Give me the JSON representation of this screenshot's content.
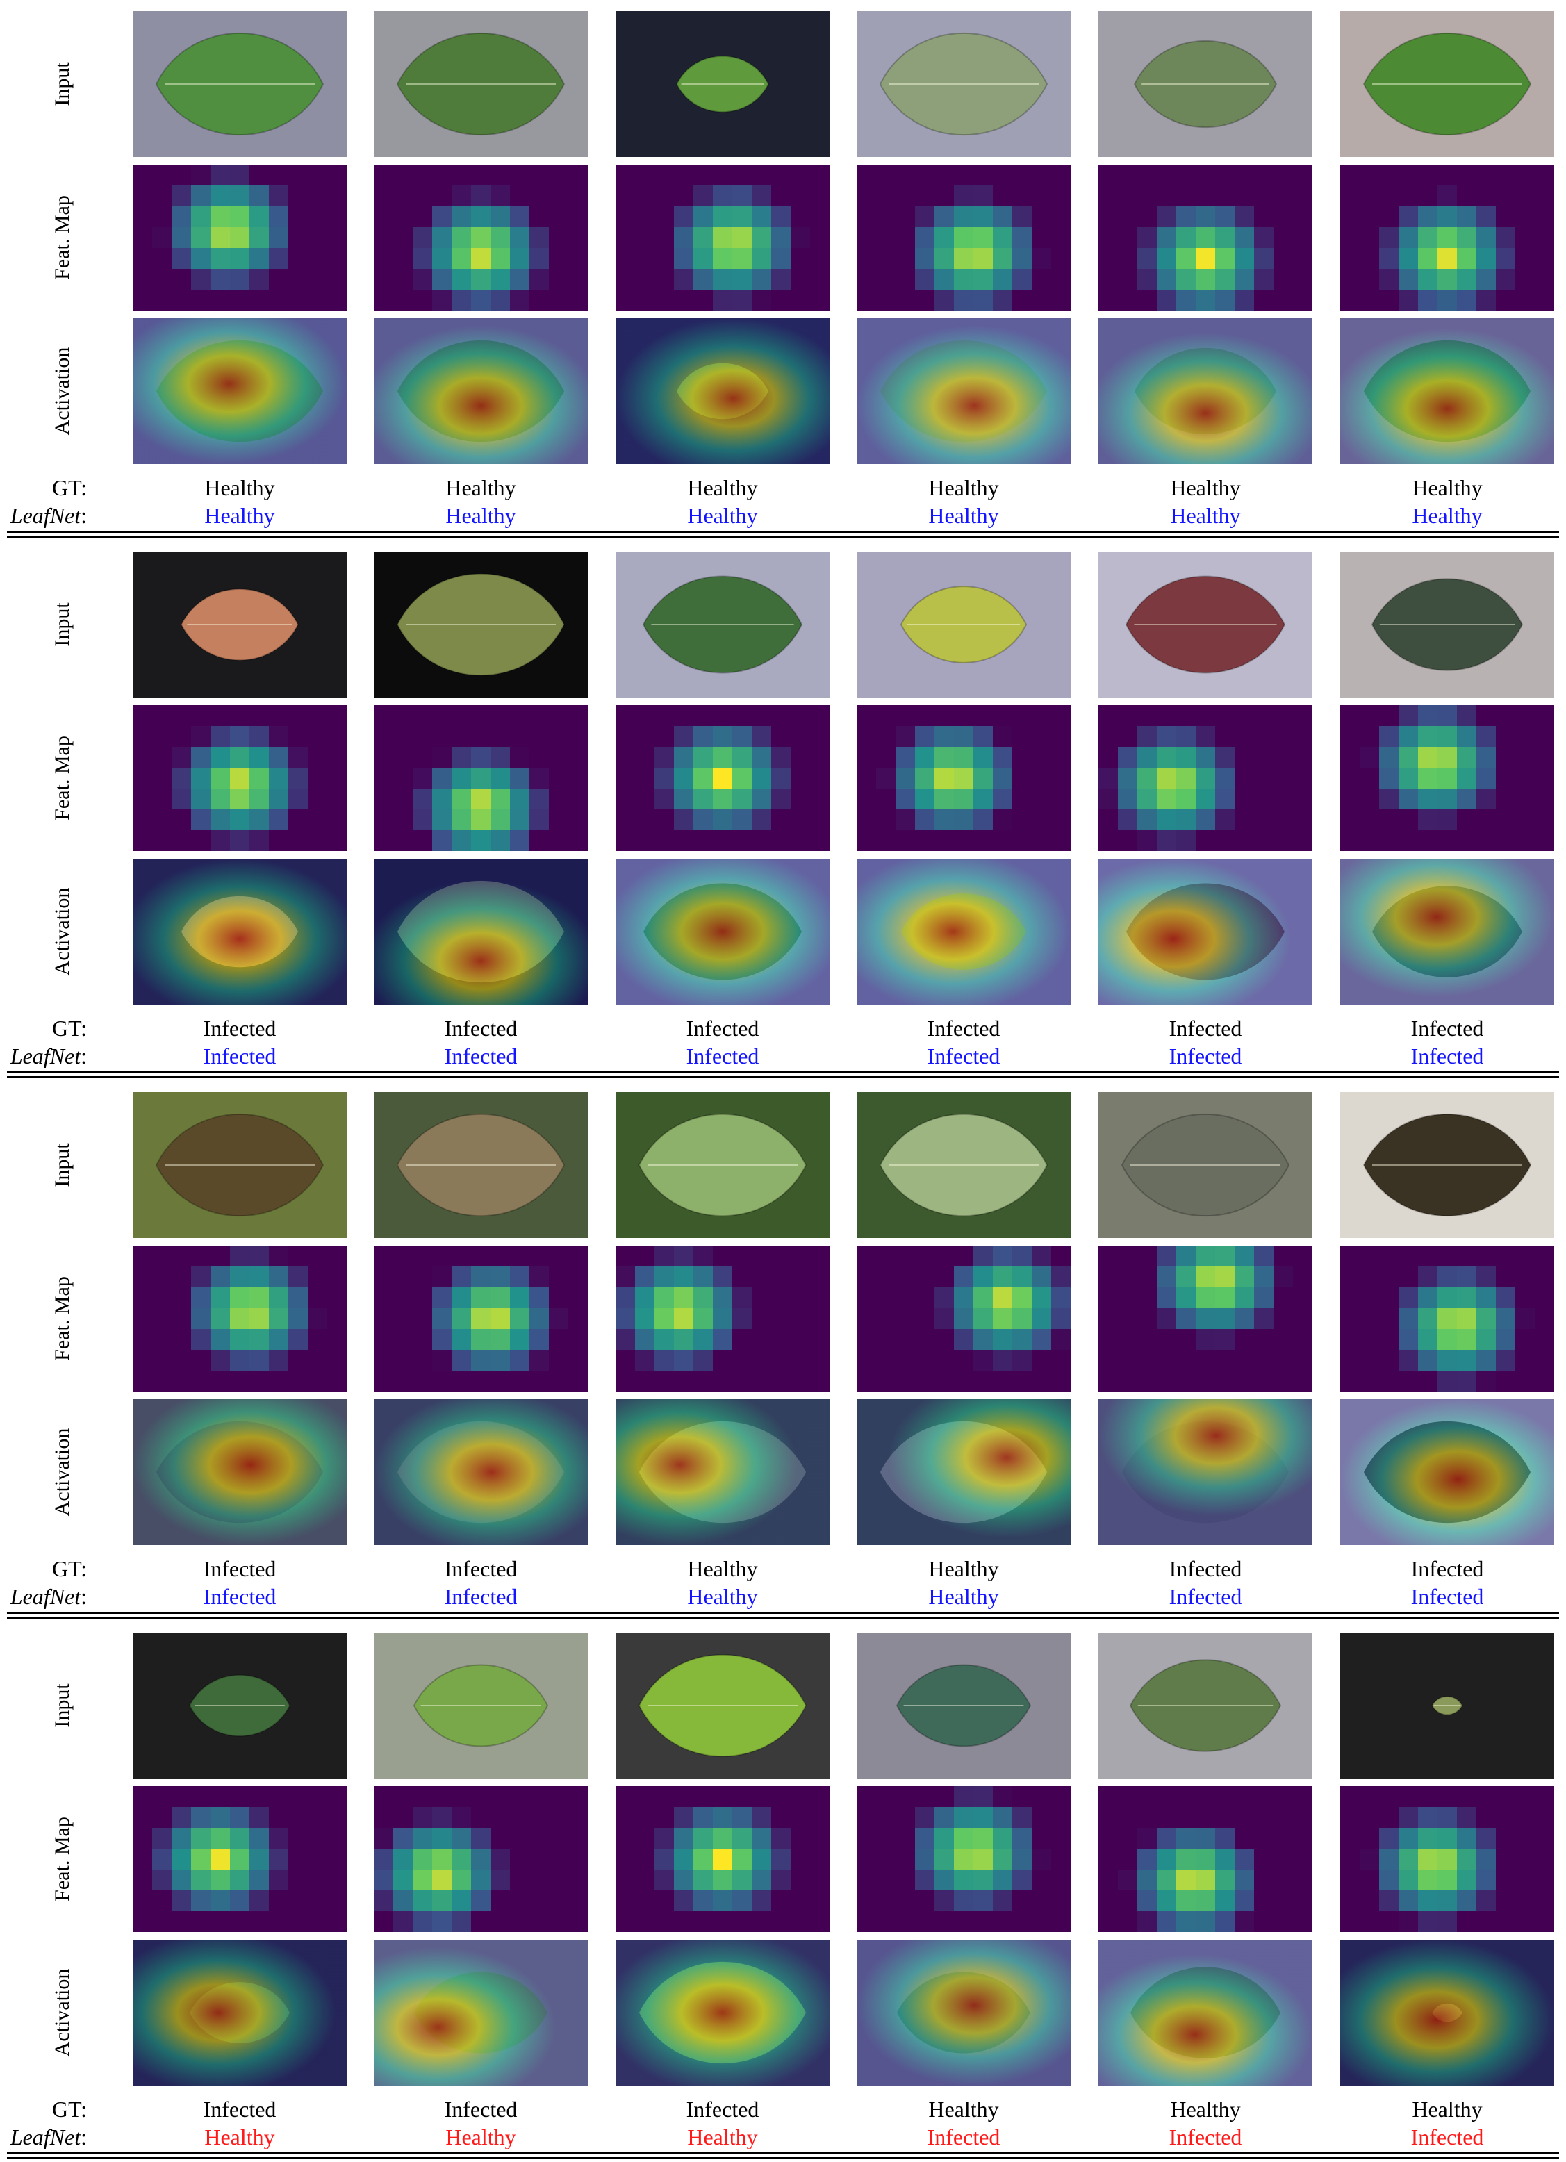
{
  "labels": {
    "rows": [
      "Input",
      "Feat. Map",
      "Activation"
    ],
    "gt": "GT:",
    "pred": "LeafNet:",
    "pred_suffix": ":"
  },
  "colors": {
    "correct": "#1414ff",
    "incorrect": "#ff1a1a",
    "text": "#000000",
    "viridis_low": "#440154",
    "viridis_mid": "#21918c",
    "viridis_high": "#fde725"
  },
  "blocks": [
    {
      "gt": [
        "Healthy",
        "Healthy",
        "Healthy",
        "Healthy",
        "Healthy",
        "Healthy"
      ],
      "pred": [
        "Healthy",
        "Healthy",
        "Healthy",
        "Healthy",
        "Healthy",
        "Healthy"
      ],
      "correct": [
        true,
        true,
        true,
        true,
        true,
        true
      ]
    },
    {
      "gt": [
        "Infected",
        "Infected",
        "Infected",
        "Infected",
        "Infected",
        "Infected"
      ],
      "pred": [
        "Infected",
        "Infected",
        "Infected",
        "Infected",
        "Infected",
        "Infected"
      ],
      "correct": [
        true,
        true,
        true,
        true,
        true,
        true
      ]
    },
    {
      "gt": [
        "Infected",
        "Infected",
        "Healthy",
        "Healthy",
        "Infected",
        "Infected"
      ],
      "pred": [
        "Infected",
        "Infected",
        "Healthy",
        "Healthy",
        "Infected",
        "Infected"
      ],
      "correct": [
        true,
        true,
        true,
        true,
        true,
        true
      ]
    },
    {
      "gt": [
        "Infected",
        "Infected",
        "Infected",
        "Healthy",
        "Healthy",
        "Healthy"
      ],
      "pred": [
        "Healthy",
        "Healthy",
        "Healthy",
        "Infected",
        "Infected",
        "Infected"
      ],
      "correct": [
        false,
        false,
        false,
        false,
        false,
        false
      ]
    }
  ]
}
